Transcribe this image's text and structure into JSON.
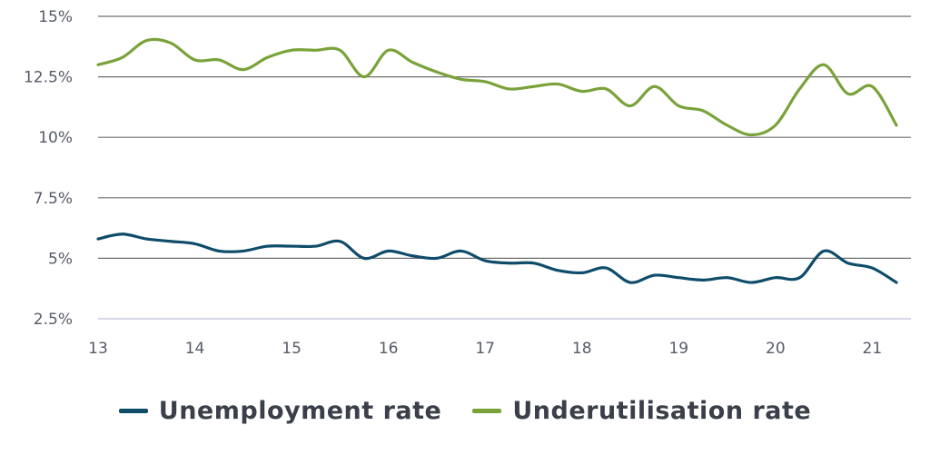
{
  "colors": {
    "unemployment": "#0f4c6a",
    "underutilisation": "#79a33a",
    "grid": "#6f6f6f",
    "baseline": "#c9ccdf"
  },
  "chart_data": {
    "type": "line",
    "title": "",
    "xlabel": "",
    "ylabel": "",
    "xlim": [
      13,
      21.4
    ],
    "ylim": [
      2.5,
      15
    ],
    "y_ticks": [
      {
        "value": 15,
        "label": "15%"
      },
      {
        "value": 12.5,
        "label": "12.5%"
      },
      {
        "value": 10,
        "label": "10%"
      },
      {
        "value": 7.5,
        "label": "7.5%"
      },
      {
        "value": 5,
        "label": "5%"
      },
      {
        "value": 2.5,
        "label": "2.5%"
      }
    ],
    "x_ticks": [
      {
        "value": 13,
        "label": "13"
      },
      {
        "value": 14,
        "label": "14"
      },
      {
        "value": 15,
        "label": "15"
      },
      {
        "value": 16,
        "label": "16"
      },
      {
        "value": 17,
        "label": "17"
      },
      {
        "value": 18,
        "label": "18"
      },
      {
        "value": 19,
        "label": "19"
      },
      {
        "value": 20,
        "label": "20"
      },
      {
        "value": 21,
        "label": "21"
      }
    ],
    "grid": true,
    "legend_position": "bottom-center",
    "series": [
      {
        "name": "Unemployment rate",
        "color_key": "unemployment",
        "x": [
          13.0,
          13.25,
          13.5,
          13.75,
          14.0,
          14.25,
          14.5,
          14.75,
          15.0,
          15.25,
          15.5,
          15.75,
          16.0,
          16.25,
          16.5,
          16.75,
          17.0,
          17.25,
          17.5,
          17.75,
          18.0,
          18.25,
          18.5,
          18.75,
          19.0,
          19.25,
          19.5,
          19.75,
          20.0,
          20.25,
          20.5,
          20.75,
          21.0,
          21.25
        ],
        "y": [
          5.8,
          6.0,
          5.8,
          5.7,
          5.6,
          5.3,
          5.3,
          5.5,
          5.5,
          5.5,
          5.7,
          5.0,
          5.3,
          5.1,
          5.0,
          5.3,
          4.9,
          4.8,
          4.8,
          4.5,
          4.4,
          4.6,
          4.0,
          4.3,
          4.2,
          4.1,
          4.2,
          4.0,
          4.2,
          4.2,
          5.3,
          4.8,
          4.6,
          4.0
        ]
      },
      {
        "name": "Underutilisation rate",
        "color_key": "underutilisation",
        "x": [
          13.0,
          13.25,
          13.5,
          13.75,
          14.0,
          14.25,
          14.5,
          14.75,
          15.0,
          15.25,
          15.5,
          15.75,
          16.0,
          16.25,
          16.5,
          16.75,
          17.0,
          17.25,
          17.5,
          17.75,
          18.0,
          18.25,
          18.5,
          18.75,
          19.0,
          19.25,
          19.5,
          19.75,
          20.0,
          20.25,
          20.5,
          20.75,
          21.0,
          21.25
        ],
        "y": [
          13.0,
          13.3,
          14.0,
          13.9,
          13.2,
          13.2,
          12.8,
          13.3,
          13.6,
          13.6,
          13.6,
          12.5,
          13.6,
          13.1,
          12.7,
          12.4,
          12.3,
          12.0,
          12.1,
          12.2,
          11.9,
          12.0,
          11.3,
          12.1,
          11.3,
          11.1,
          10.5,
          10.1,
          10.5,
          12.0,
          13.0,
          11.8,
          12.1,
          10.5
        ]
      }
    ]
  }
}
